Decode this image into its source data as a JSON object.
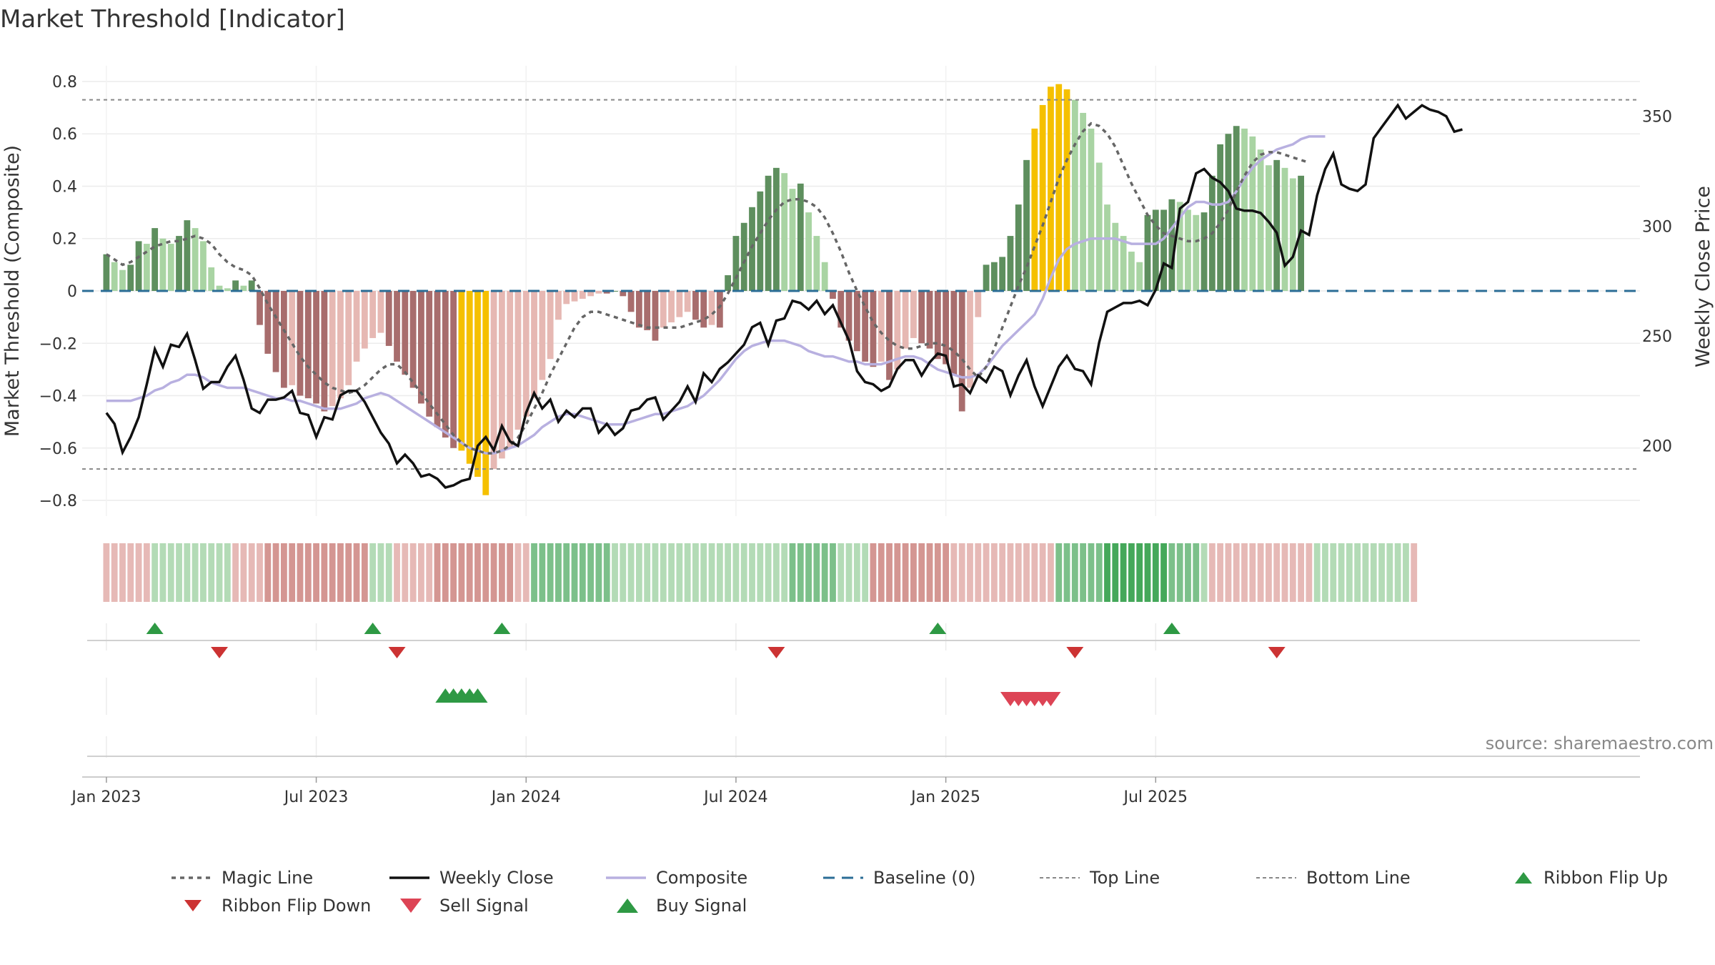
{
  "title": "Market Threshold [Indicator]",
  "source": "source: sharemaestro.com",
  "chart_data": {
    "type": "bar",
    "title": "Market Threshold [Indicator]",
    "ylabel": "Market Threshold (Composite)",
    "y2label": "Weekly Close Price",
    "ylim": [
      -0.86,
      0.86
    ],
    "y2lim": [
      168,
      373
    ],
    "yticks": [
      0.8,
      0.6,
      0.4,
      0.2,
      0,
      -0.2,
      -0.4,
      -0.6,
      -0.8
    ],
    "ytick_labels": [
      "0.8",
      "0.6",
      "0.4",
      "0.2",
      "0",
      "−0.2",
      "−0.4",
      "−0.6",
      "−0.8"
    ],
    "y2ticks": [
      350,
      300,
      250,
      200
    ],
    "y2tick_labels": [
      "350",
      "300",
      "250",
      "200"
    ],
    "xlim": [
      -3,
      190
    ],
    "xticks": [
      0,
      26,
      52,
      78,
      104,
      130
    ],
    "xtick_labels": [
      "Jan 2023",
      "Jul 2023",
      "Jan 2024",
      "Jul 2024",
      "Jan 2025",
      "Jul 2025"
    ],
    "top_line": 0.73,
    "bottom_line": -0.68,
    "baseline": 0,
    "composite": [
      0.14,
      0.11,
      0.08,
      0.1,
      0.19,
      0.18,
      0.24,
      0.2,
      0.18,
      0.21,
      0.27,
      0.24,
      0.19,
      0.09,
      0.02,
      0.01,
      0.04,
      0.02,
      0.04,
      -0.13,
      -0.24,
      -0.31,
      -0.37,
      -0.36,
      -0.4,
      -0.41,
      -0.43,
      -0.46,
      -0.44,
      -0.41,
      -0.36,
      -0.27,
      -0.22,
      -0.18,
      -0.16,
      -0.21,
      -0.27,
      -0.32,
      -0.37,
      -0.43,
      -0.48,
      -0.52,
      -0.56,
      -0.6,
      -0.61,
      -0.66,
      -0.71,
      -0.78,
      -0.68,
      -0.64,
      -0.6,
      -0.53,
      -0.48,
      -0.41,
      -0.34,
      -0.26,
      -0.11,
      -0.05,
      -0.04,
      -0.03,
      -0.02,
      -0.01,
      -0.01,
      0.0,
      -0.02,
      -0.08,
      -0.14,
      -0.15,
      -0.19,
      -0.14,
      -0.12,
      -0.1,
      -0.08,
      -0.11,
      -0.14,
      -0.13,
      -0.14,
      0.06,
      0.21,
      0.26,
      0.32,
      0.38,
      0.44,
      0.47,
      0.45,
      0.39,
      0.41,
      0.3,
      0.21,
      0.11,
      -0.03,
      -0.14,
      -0.19,
      -0.23,
      -0.27,
      -0.29,
      -0.27,
      -0.34,
      -0.3,
      -0.22,
      -0.18,
      -0.2,
      -0.22,
      -0.26,
      -0.28,
      -0.32,
      -0.46,
      -0.37,
      -0.1,
      0.1,
      0.11,
      0.13,
      0.21,
      0.33,
      0.5,
      0.62,
      0.71,
      0.78,
      0.79,
      0.77,
      0.73,
      0.68,
      0.62,
      0.49,
      0.33,
      0.26,
      0.21,
      0.15,
      0.11,
      0.29,
      0.31,
      0.31,
      0.35,
      0.34,
      0.31,
      0.29,
      0.3,
      0.44,
      0.56,
      0.6,
      0.63,
      0.62,
      0.59,
      0.54,
      0.48,
      0.5,
      0.47,
      0.43,
      0.44
    ],
    "highlight_bars": [
      44,
      45,
      46,
      47,
      115,
      116,
      117,
      118,
      119
    ],
    "weekly_close": [
      215,
      210,
      197,
      204,
      213,
      228,
      244,
      236,
      246,
      245,
      251,
      239,
      226,
      229,
      229,
      236,
      241,
      230,
      217,
      215,
      221,
      221,
      222,
      225,
      215,
      214,
      204,
      213,
      212,
      223,
      225,
      225,
      220,
      213,
      206,
      201,
      192,
      196,
      192,
      186,
      187,
      185,
      181,
      182,
      184,
      185,
      200,
      204,
      198,
      209,
      202,
      200,
      215,
      224,
      217,
      221,
      211,
      216,
      213,
      217,
      217,
      206,
      210,
      205,
      208,
      216,
      217,
      221,
      222,
      212,
      216,
      220,
      227,
      220,
      233,
      229,
      235,
      238,
      242,
      246,
      254,
      256,
      246,
      257,
      258,
      266,
      265,
      262,
      266,
      260,
      264,
      256,
      248,
      234,
      229,
      228,
      225,
      227,
      235,
      239,
      239,
      232,
      238,
      242,
      241,
      227,
      228,
      224,
      232,
      229,
      236,
      234,
      223,
      232,
      239,
      227,
      218,
      227,
      236,
      241,
      235,
      234,
      228,
      247,
      261,
      263,
      265,
      265,
      266,
      264,
      271,
      283,
      281,
      308,
      311,
      324,
      326,
      322,
      320,
      316,
      308,
      307,
      307,
      306,
      302,
      297,
      282,
      286,
      298,
      296,
      314,
      326,
      333,
      319,
      317,
      316,
      319,
      340,
      345,
      350,
      355,
      349,
      352,
      355,
      353,
      352,
      350,
      343,
      344
    ],
    "magic_line": [
      0.14,
      0.12,
      0.1,
      0.11,
      0.13,
      0.15,
      0.17,
      0.18,
      0.19,
      0.19,
      0.2,
      0.21,
      0.2,
      0.18,
      0.14,
      0.11,
      0.09,
      0.08,
      0.06,
      0.01,
      -0.05,
      -0.1,
      -0.15,
      -0.2,
      -0.25,
      -0.29,
      -0.32,
      -0.35,
      -0.37,
      -0.38,
      -0.39,
      -0.38,
      -0.36,
      -0.33,
      -0.3,
      -0.28,
      -0.28,
      -0.31,
      -0.35,
      -0.39,
      -0.43,
      -0.47,
      -0.51,
      -0.55,
      -0.58,
      -0.6,
      -0.61,
      -0.62,
      -0.62,
      -0.61,
      -0.59,
      -0.56,
      -0.51,
      -0.45,
      -0.39,
      -0.32,
      -0.26,
      -0.2,
      -0.14,
      -0.1,
      -0.08,
      -0.08,
      -0.09,
      -0.1,
      -0.11,
      -0.12,
      -0.13,
      -0.14,
      -0.14,
      -0.14,
      -0.14,
      -0.14,
      -0.13,
      -0.12,
      -0.11,
      -0.09,
      -0.06,
      -0.01,
      0.05,
      0.11,
      0.17,
      0.22,
      0.27,
      0.31,
      0.34,
      0.35,
      0.35,
      0.34,
      0.32,
      0.28,
      0.22,
      0.15,
      0.07,
      0.0,
      -0.06,
      -0.12,
      -0.16,
      -0.19,
      -0.21,
      -0.22,
      -0.22,
      -0.21,
      -0.2,
      -0.2,
      -0.21,
      -0.23,
      -0.26,
      -0.3,
      -0.33,
      -0.29,
      -0.22,
      -0.14,
      -0.06,
      0.02,
      0.09,
      0.17,
      0.25,
      0.34,
      0.43,
      0.5,
      0.56,
      0.61,
      0.64,
      0.63,
      0.6,
      0.55,
      0.48,
      0.41,
      0.35,
      0.29,
      0.25,
      0.22,
      0.21,
      0.2,
      0.19,
      0.19,
      0.2,
      0.22,
      0.26,
      0.31,
      0.38,
      0.44,
      0.49,
      0.52,
      0.53,
      0.53,
      0.52,
      0.51,
      0.5,
      0.49
    ],
    "composite_line": [
      -0.42,
      -0.42,
      -0.42,
      -0.42,
      -0.41,
      -0.4,
      -0.38,
      -0.37,
      -0.35,
      -0.34,
      -0.32,
      -0.32,
      -0.33,
      -0.35,
      -0.36,
      -0.37,
      -0.37,
      -0.37,
      -0.38,
      -0.39,
      -0.4,
      -0.41,
      -0.41,
      -0.42,
      -0.42,
      -0.43,
      -0.44,
      -0.45,
      -0.45,
      -0.45,
      -0.44,
      -0.43,
      -0.41,
      -0.4,
      -0.39,
      -0.4,
      -0.42,
      -0.44,
      -0.46,
      -0.48,
      -0.5,
      -0.52,
      -0.54,
      -0.56,
      -0.58,
      -0.6,
      -0.61,
      -0.62,
      -0.62,
      -0.61,
      -0.6,
      -0.59,
      -0.57,
      -0.55,
      -0.52,
      -0.5,
      -0.48,
      -0.47,
      -0.47,
      -0.48,
      -0.49,
      -0.5,
      -0.51,
      -0.51,
      -0.51,
      -0.5,
      -0.49,
      -0.48,
      -0.47,
      -0.47,
      -0.46,
      -0.45,
      -0.44,
      -0.42,
      -0.4,
      -0.37,
      -0.34,
      -0.3,
      -0.26,
      -0.23,
      -0.21,
      -0.2,
      -0.19,
      -0.19,
      -0.19,
      -0.2,
      -0.21,
      -0.23,
      -0.24,
      -0.25,
      -0.25,
      -0.26,
      -0.27,
      -0.27,
      -0.28,
      -0.28,
      -0.28,
      -0.27,
      -0.26,
      -0.25,
      -0.25,
      -0.26,
      -0.28,
      -0.3,
      -0.31,
      -0.32,
      -0.33,
      -0.33,
      -0.32,
      -0.29,
      -0.25,
      -0.21,
      -0.18,
      -0.15,
      -0.12,
      -0.09,
      -0.03,
      0.05,
      0.12,
      0.16,
      0.18,
      0.19,
      0.2,
      0.2,
      0.2,
      0.2,
      0.19,
      0.18,
      0.18,
      0.18,
      0.18,
      0.2,
      0.24,
      0.28,
      0.32,
      0.34,
      0.34,
      0.33,
      0.33,
      0.34,
      0.38,
      0.43,
      0.47,
      0.5,
      0.52,
      0.54,
      0.55,
      0.56,
      0.58,
      0.59,
      0.59,
      0.59
    ],
    "ribbon": [
      -1,
      -1,
      -1,
      -1,
      -1,
      -1,
      1,
      1,
      1,
      1,
      1,
      1,
      1,
      1,
      1,
      1,
      -1,
      -1,
      -1,
      -1,
      -2,
      -2,
      -2,
      -2,
      -2,
      -2,
      -2,
      -2,
      -2,
      -2,
      -2,
      -2,
      -2,
      1,
      1,
      1,
      -1,
      -1,
      -1,
      -1,
      -1,
      -2,
      -2,
      -2,
      -2,
      -2,
      -2,
      -2,
      -2,
      -2,
      -2,
      -1,
      -1,
      2,
      2,
      2,
      2,
      2,
      2,
      2,
      2,
      2,
      2,
      1,
      1,
      1,
      1,
      1,
      1,
      1,
      1,
      1,
      1,
      1,
      1,
      1,
      1,
      1,
      1,
      1,
      1,
      1,
      1,
      1,
      1,
      2,
      2,
      2,
      2,
      2,
      2,
      1,
      1,
      1,
      1,
      -2,
      -2,
      -2,
      -2,
      -2,
      -2,
      -2,
      -2,
      -2,
      -2,
      -1,
      -1,
      -1,
      -1,
      -1,
      -1,
      -1,
      -1,
      -1,
      -1,
      -1,
      -1,
      -1,
      2,
      2,
      2,
      2,
      2,
      2,
      3,
      3,
      3,
      3,
      3,
      3,
      3,
      3,
      2,
      2,
      2,
      2,
      1,
      -1,
      -1,
      -1,
      -1,
      -1,
      -1,
      -1,
      -1,
      -1,
      -1,
      -1,
      -1,
      -1,
      1,
      1,
      1,
      1,
      1,
      1,
      1,
      1,
      1,
      1,
      1,
      1,
      -1
    ],
    "ribbon_flip_up": [
      6,
      33,
      49,
      103,
      132
    ],
    "ribbon_flip_down": [
      14,
      36,
      83,
      120,
      145
    ],
    "buy_signal": [
      42,
      43,
      44,
      45,
      46
    ],
    "sell_signal": [
      112,
      113,
      114,
      115,
      116,
      117
    ]
  },
  "colors": {
    "pos_dark": "#5e8f5e",
    "pos_light": "#a9d4a3",
    "neg_dark": "#a86d6d",
    "neg_light": "#e6b8b3",
    "highlight": "#f5c000",
    "weekly_close": "#111111",
    "composite_line": "#b8b0e0",
    "magic_line": "#666666",
    "baseline": "#2b6d96",
    "up": "#2e9944",
    "down": "#cc3333",
    "sell": "#dd4455"
  },
  "legend": [
    {
      "label": "Magic Line",
      "kind": "dotted",
      "color": "#666666"
    },
    {
      "label": "Weekly Close",
      "kind": "solid",
      "color": "#111111"
    },
    {
      "label": "Composite",
      "kind": "solid-light",
      "color": "#b8b0e0"
    },
    {
      "label": "Baseline (0)",
      "kind": "dashed",
      "color": "#2b6d96"
    },
    {
      "label": "Top Line",
      "kind": "thin-dotted",
      "color": "#888888"
    },
    {
      "label": "Bottom Line",
      "kind": "thin-dotted",
      "color": "#888888"
    },
    {
      "label": "Ribbon Flip Up",
      "kind": "tri-up",
      "color": "#2e9944"
    },
    {
      "label": "Ribbon Flip Down",
      "kind": "tri-down",
      "color": "#cc3333"
    },
    {
      "label": "Sell Signal",
      "kind": "tri-down-big",
      "color": "#dd4455"
    },
    {
      "label": "Buy Signal",
      "kind": "tri-up-big",
      "color": "#2e9944"
    }
  ]
}
